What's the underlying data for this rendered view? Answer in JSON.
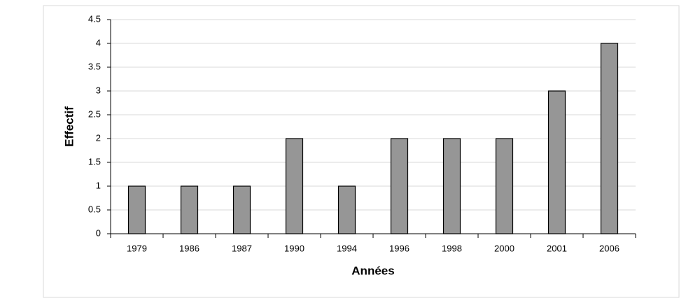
{
  "chart_data": {
    "type": "bar",
    "x_label": "Années",
    "y_label": "Effectif",
    "categories": [
      "1979",
      "1986",
      "1987",
      "1990",
      "1994",
      "1996",
      "1998",
      "2000",
      "2001",
      "2006"
    ],
    "values": [
      1,
      1,
      1,
      2,
      1,
      2,
      2,
      2,
      3,
      4
    ],
    "color": "#969696",
    "ylim": [
      0,
      4.5
    ],
    "yticks": [
      0,
      0.5,
      1,
      1.5,
      2,
      2.5,
      3,
      3.5,
      4,
      4.5
    ],
    "grid": true
  }
}
